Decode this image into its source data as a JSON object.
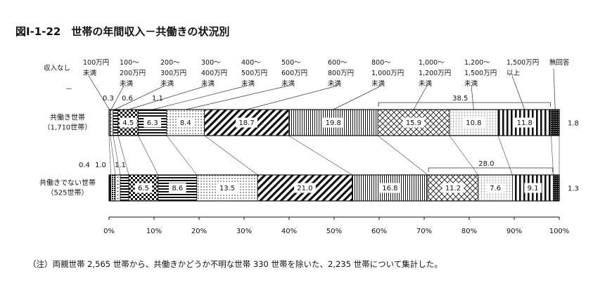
{
  "title": "図Ⅰ-1-22　世帯の年間収入－共働きの状況別",
  "note": "（注）両親世帯 2,565 世帯から、共働きかどうか不明な世帯 330 世帯を除いた、2,235 世帯について集計した。",
  "chart_data": {
    "type": "bar",
    "orientation": "horizontal",
    "stacked": true,
    "categories": [
      [
        "収入なし"
      ],
      [
        "100万円",
        "未満"
      ],
      [
        "100～",
        "200万円",
        "未満"
      ],
      [
        "200～",
        "300万円",
        "未満"
      ],
      [
        "300～",
        "400万円",
        "未満"
      ],
      [
        "400～",
        "500万円",
        "未満"
      ],
      [
        "500～",
        "600万円",
        "未満"
      ],
      [
        "600～",
        "800万円",
        "未満"
      ],
      [
        "800～",
        "1,000万円",
        "未満"
      ],
      [
        "1,000～",
        "1,200万円",
        "未満"
      ],
      [
        "1,200～",
        "1,500万円",
        "未満"
      ],
      [
        "1,500万円",
        "以上"
      ],
      [
        "無回答"
      ]
    ],
    "series": [
      {
        "name_lines": [
          "共働き世帯",
          "（1,710世帯）"
        ],
        "values": [
          0,
          0.3,
          0.6,
          1.1,
          4.5,
          6.3,
          8.4,
          18.7,
          19.8,
          15.9,
          10.8,
          11.8,
          1.8
        ],
        "labels": [
          "－",
          "0.3",
          "0.6",
          "1.1",
          "4.5",
          "6.3",
          "8.4",
          "18.7",
          "19.8",
          "15.9",
          "10.8",
          "11.8",
          "1.8"
        ],
        "bracket_label": "38.5"
      },
      {
        "name_lines": [
          "共働きでない世帯",
          "（525世帯）"
        ],
        "values": [
          0.4,
          1.0,
          1.1,
          1.9,
          6.5,
          8.6,
          13.5,
          21.0,
          16.8,
          11.2,
          7.6,
          9.1,
          1.3
        ],
        "labels": [
          "0.4",
          "1.0",
          "1.1",
          "1.9",
          "6.5",
          "8.6",
          "13.5",
          "21.0",
          "16.8",
          "11.2",
          "7.6",
          "9.1",
          "1.3"
        ],
        "bracket_label": "28.0"
      }
    ],
    "xlim": [
      0,
      100
    ],
    "xticks": [
      "0%",
      "10%",
      "20%",
      "30%",
      "40%",
      "50%",
      "60%",
      "70%",
      "80%",
      "90%",
      "100%"
    ],
    "grid": false
  }
}
